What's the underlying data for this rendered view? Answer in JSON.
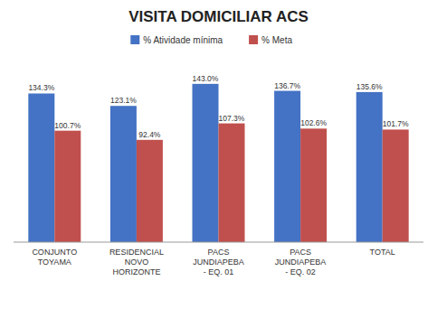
{
  "chart_data": {
    "type": "bar",
    "title": "VISITA DOMICILIAR ACS",
    "categories": [
      "CONJUNTO\nTOYAMA",
      "RESIDENCIAL\nNOVO\nHORIZONTE",
      "PACS\nJUNDIAPEBA\n- EQ. 01",
      "PACS\nJUNDIAPEBA\n- EQ. 02",
      "TOTAL"
    ],
    "series": [
      {
        "name": "% Atividade mínima",
        "color": "#4472C4",
        "values": [
          134.3,
          123.1,
          143.0,
          136.7,
          135.6
        ],
        "value_labels": [
          "134.3%",
          "123.1%",
          "143.0%",
          "136.7%",
          "135.6%"
        ]
      },
      {
        "name": "% Meta",
        "color": "#C0504D",
        "values": [
          100.7,
          92.4,
          107.3,
          102.6,
          101.7
        ],
        "value_labels": [
          "100.7%",
          "92.4%",
          "107.3%",
          "102.6%",
          "101.7%"
        ]
      }
    ],
    "ylim": [
      0,
      160
    ],
    "data_labels": true,
    "legend": "top",
    "grid": false,
    "tick_labels": "x"
  }
}
